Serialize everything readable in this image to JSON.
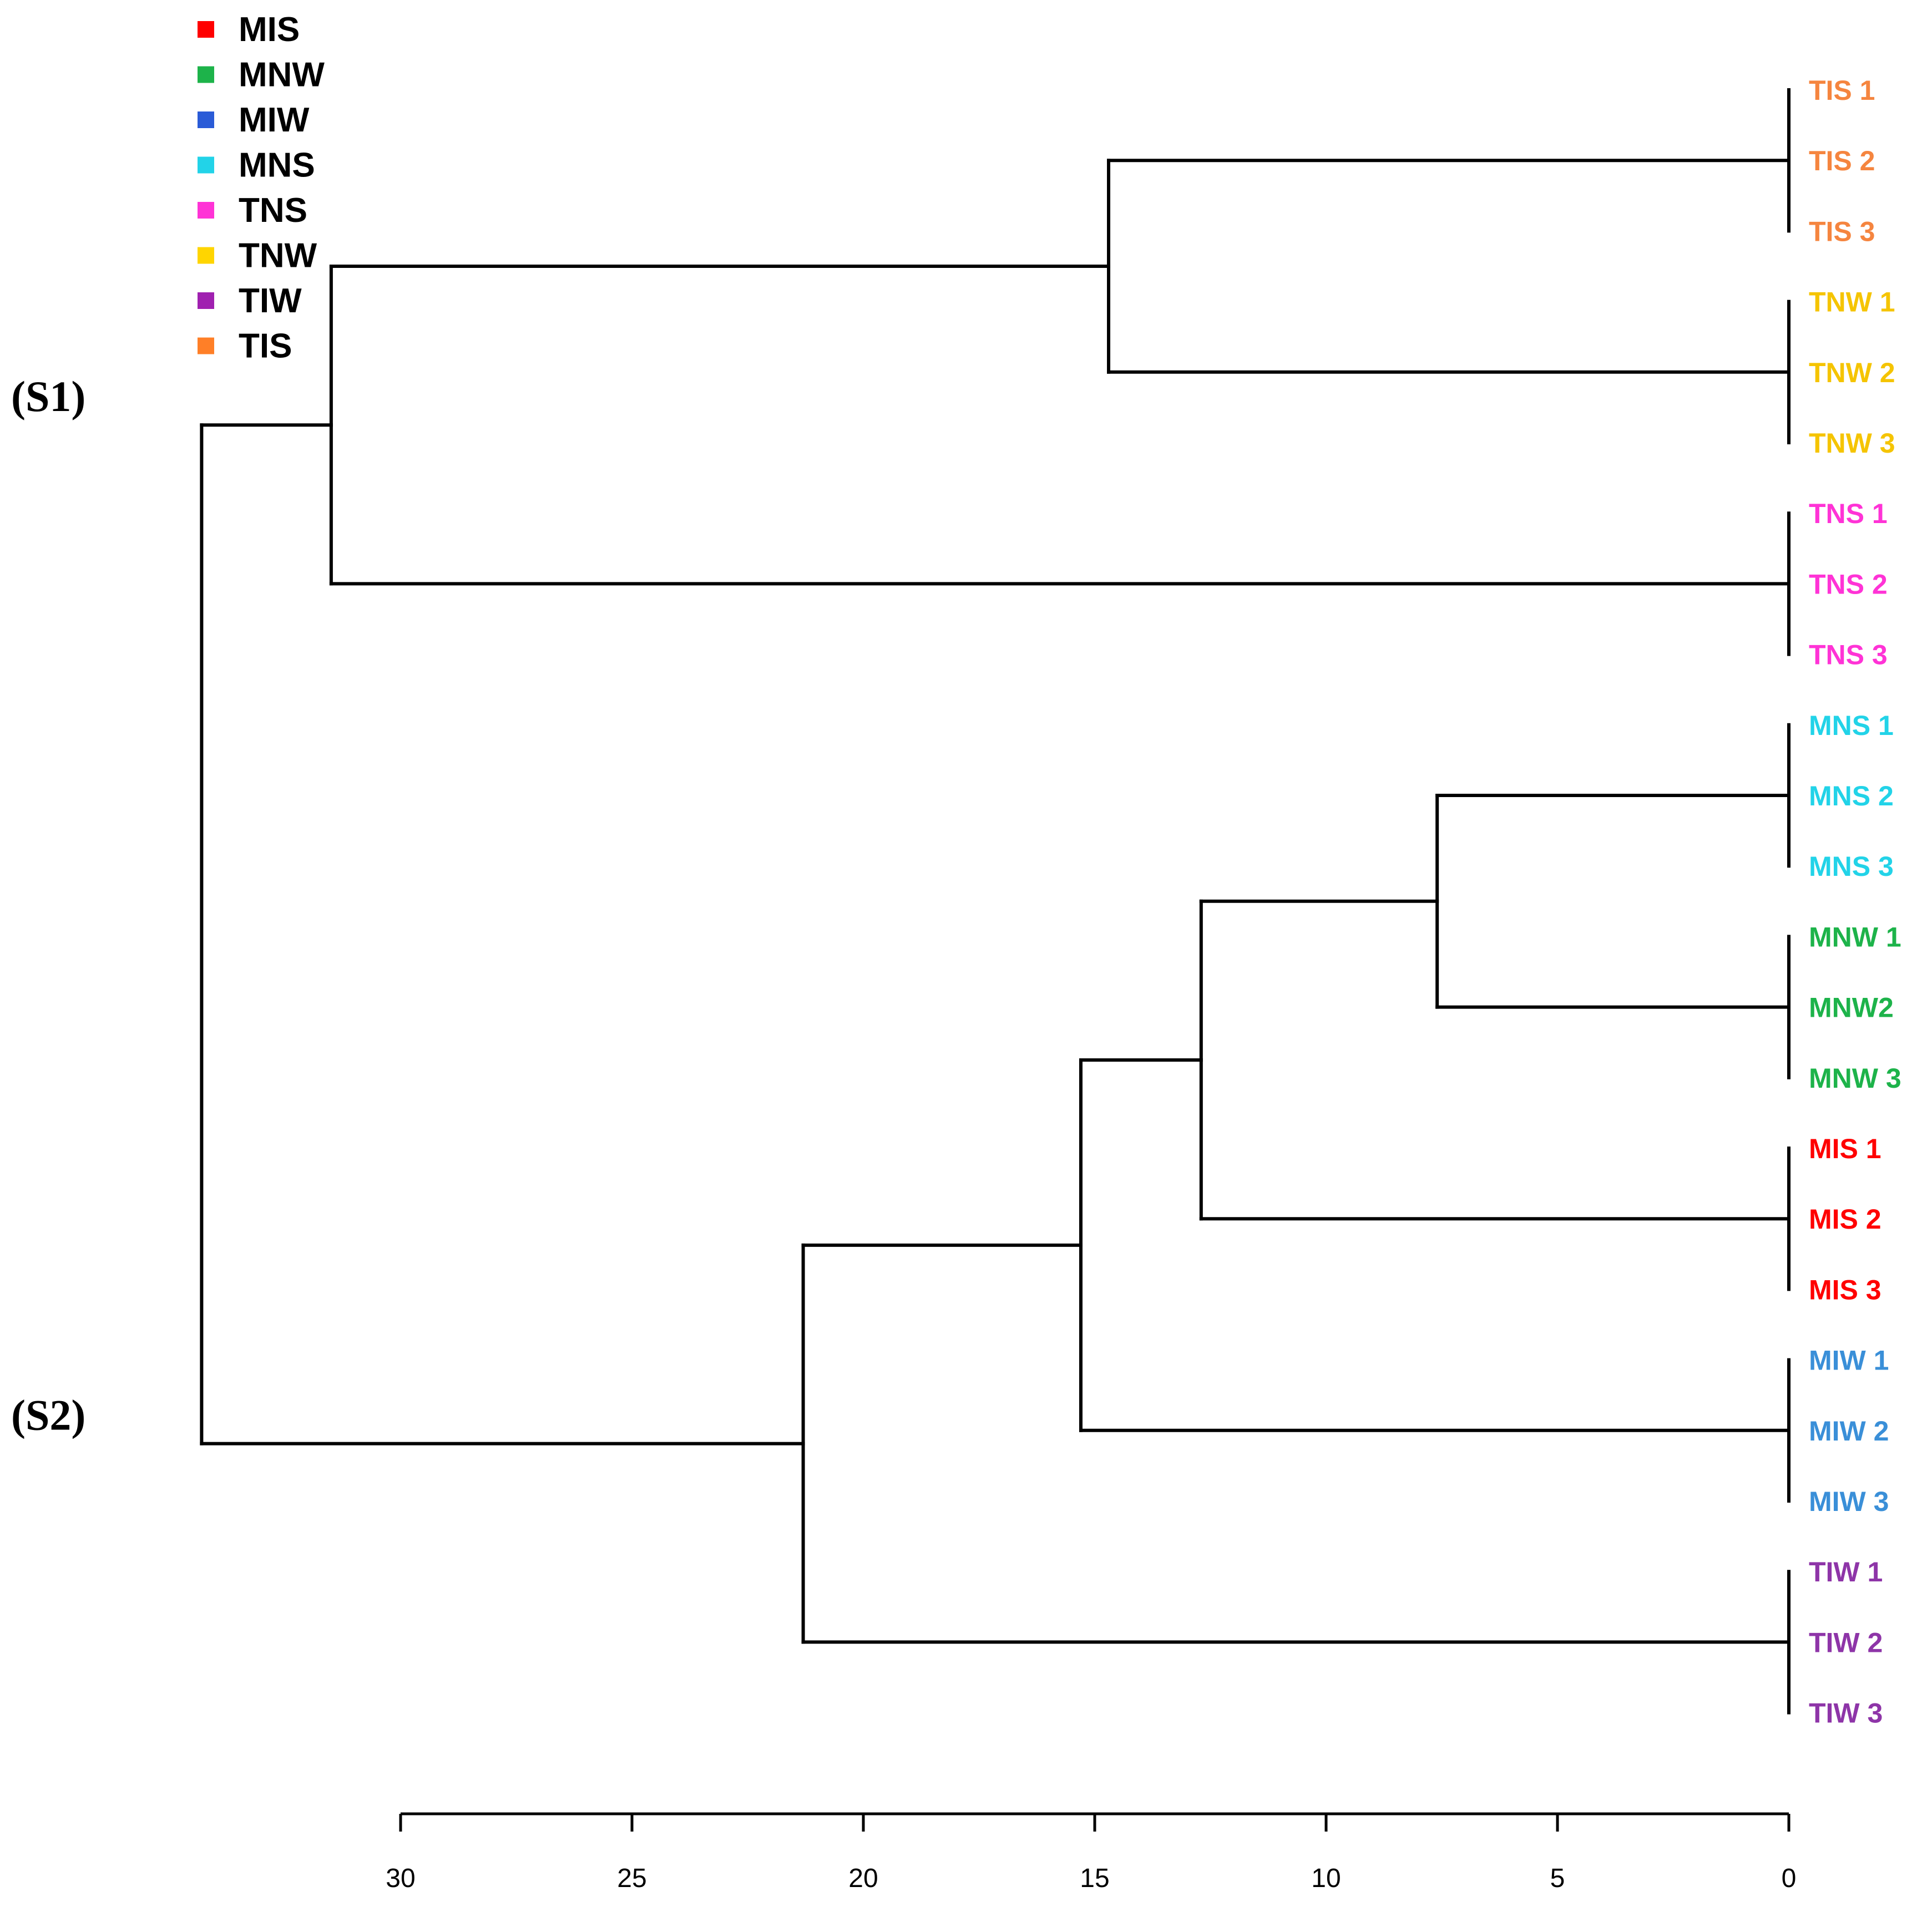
{
  "chart_data": {
    "type": "dendrogram",
    "orientation": "right-to-left",
    "legend": {
      "placement": "top-left",
      "items": [
        {
          "label": "MIS",
          "color": "#ff0000"
        },
        {
          "label": "MNW",
          "color": "#1db34a"
        },
        {
          "label": "MIW",
          "color": "#2a5bd7"
        },
        {
          "label": "MNS",
          "color": "#22d3e8"
        },
        {
          "label": "TNS",
          "color": "#ff33d6"
        },
        {
          "label": "TNW",
          "color": "#ffd500"
        },
        {
          "label": "TIW",
          "color": "#a020b0"
        },
        {
          "label": "TIS",
          "color": "#ff7f27"
        }
      ]
    },
    "leaves": [
      {
        "label": "TIS 1",
        "group": "TIS",
        "color": "#f5853f"
      },
      {
        "label": "TIS 2",
        "group": "TIS",
        "color": "#f5853f"
      },
      {
        "label": "TIS 3",
        "group": "TIS",
        "color": "#f5853f"
      },
      {
        "label": "TNW 1",
        "group": "TNW",
        "color": "#f5c400"
      },
      {
        "label": "TNW 2",
        "group": "TNW",
        "color": "#f5c400"
      },
      {
        "label": "TNW 3",
        "group": "TNW",
        "color": "#f5c400"
      },
      {
        "label": "TNS 1",
        "group": "TNS",
        "color": "#ff33d6"
      },
      {
        "label": "TNS 2",
        "group": "TNS",
        "color": "#ff33d6"
      },
      {
        "label": "TNS 3",
        "group": "TNS",
        "color": "#ff33d6"
      },
      {
        "label": "MNS 1",
        "group": "MNS",
        "color": "#22d3e8"
      },
      {
        "label": "MNS 2",
        "group": "MNS",
        "color": "#22d3e8"
      },
      {
        "label": "MNS 3",
        "group": "MNS",
        "color": "#22d3e8"
      },
      {
        "label": "MNW 1",
        "group": "MNW",
        "color": "#1db34a"
      },
      {
        "label": "MNW2",
        "group": "MNW",
        "color": "#1db34a"
      },
      {
        "label": "MNW 3",
        "group": "MNW",
        "color": "#1db34a"
      },
      {
        "label": "MIS 1",
        "group": "MIS",
        "color": "#ff0000"
      },
      {
        "label": "MIS 2",
        "group": "MIS",
        "color": "#ff0000"
      },
      {
        "label": "MIS 3",
        "group": "MIS",
        "color": "#ff0000"
      },
      {
        "label": "MIW 1",
        "group": "MIW",
        "color": "#3a8fd8"
      },
      {
        "label": "MIW 2",
        "group": "MIW",
        "color": "#3a8fd8"
      },
      {
        "label": "MIW 3",
        "group": "MIW",
        "color": "#3a8fd8"
      },
      {
        "label": "TIW 1",
        "group": "TIW",
        "color": "#8e35a8"
      },
      {
        "label": "TIW 2",
        "group": "TIW",
        "color": "#8e35a8"
      },
      {
        "label": "TIW 3",
        "group": "TIW",
        "color": "#8e35a8"
      }
    ],
    "merges": [
      {
        "id": "TIS",
        "children": [
          0,
          1,
          2
        ],
        "height": 0
      },
      {
        "id": "TNW",
        "children": [
          3,
          4,
          5
        ],
        "height": 0
      },
      {
        "id": "TNS",
        "children": [
          6,
          7,
          8
        ],
        "height": 0
      },
      {
        "id": "MNS",
        "children": [
          9,
          10,
          11
        ],
        "height": 0
      },
      {
        "id": "MNW",
        "children": [
          12,
          13,
          14
        ],
        "height": 0
      },
      {
        "id": "MIS",
        "children": [
          15,
          16,
          17
        ],
        "height": 0
      },
      {
        "id": "MIW",
        "children": [
          18,
          19,
          20
        ],
        "height": 0
      },
      {
        "id": "TIW",
        "children": [
          21,
          22,
          23
        ],
        "height": 0
      },
      {
        "id": "TIS_TNW",
        "children": [
          "TIS",
          "TNW"
        ],
        "height": 14.7
      },
      {
        "id": "S1",
        "children": [
          "TIS_TNW",
          "TNS"
        ],
        "height": 31.5
      },
      {
        "id": "MNS_MNW",
        "children": [
          "MNS",
          "MNW"
        ],
        "height": 7.6
      },
      {
        "id": "MNS_MNW_MIS",
        "children": [
          "MNS_MNW",
          "MIS"
        ],
        "height": 12.7
      },
      {
        "id": "M_MIW",
        "children": [
          "MNS_MNW_MIS",
          "MIW"
        ],
        "height": 15.3
      },
      {
        "id": "S2",
        "children": [
          "M_MIW",
          "TIW"
        ],
        "height": 21.3
      },
      {
        "id": "ROOT",
        "children": [
          "S1",
          "S2"
        ],
        "height": 34.3
      }
    ],
    "axis": {
      "ticks": [
        30,
        25,
        20,
        15,
        10,
        5,
        0
      ],
      "range": [
        34.5,
        0
      ]
    },
    "groups": [
      {
        "label": "(S1)",
        "node": "S1"
      },
      {
        "label": "(S2)",
        "node": "S2"
      }
    ]
  }
}
